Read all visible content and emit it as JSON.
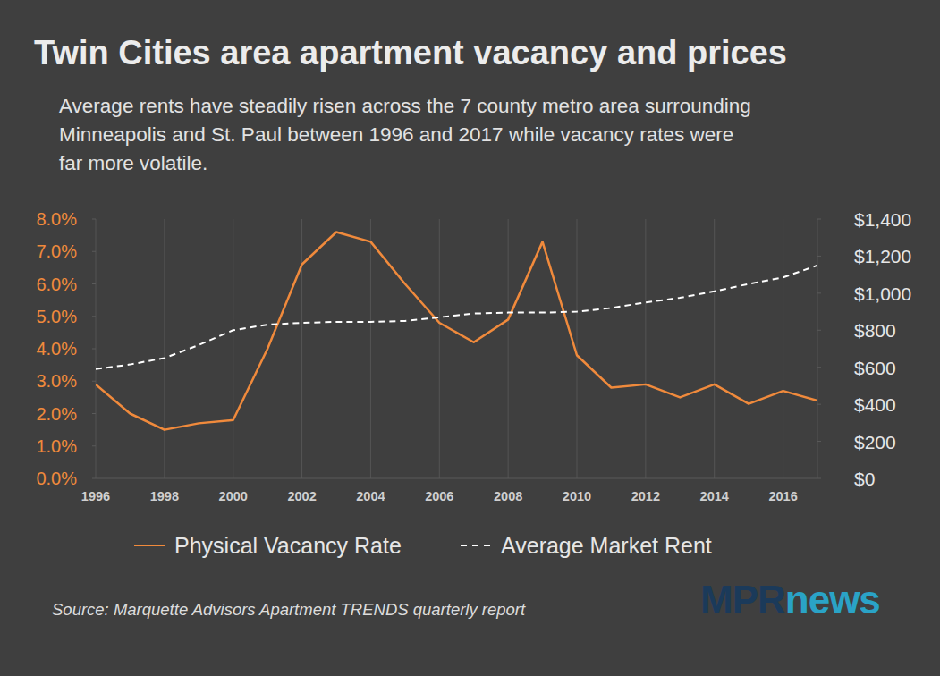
{
  "chart_data": {
    "type": "line",
    "title": "Twin Cities area apartment vacancy and prices",
    "subtitle": [
      "Average rents have steadily risen across the 7 county metro area surrounding",
      "Minneapolis and St. Paul between 1996 and 2017 while vacancy rates were",
      "far more volatile."
    ],
    "source": "Source: Marquette Advisors Apartment TRENDS quarterly report",
    "brand": [
      "MPR",
      "news"
    ],
    "x": [
      1996,
      1997,
      1998,
      1999,
      2000,
      2001,
      2002,
      2003,
      2004,
      2005,
      2006,
      2007,
      2008,
      2009,
      2010,
      2011,
      2012,
      2013,
      2014,
      2015,
      2016,
      2017
    ],
    "xlim": [
      1996,
      2017
    ],
    "xticks": [
      1996,
      1998,
      2000,
      2002,
      2004,
      2006,
      2008,
      2010,
      2012,
      2014,
      2016
    ],
    "ylim": [
      0,
      8
    ],
    "yticks": [
      {
        "value": 0,
        "label": "0.0%"
      },
      {
        "value": 1,
        "label": "1.0%"
      },
      {
        "value": 2,
        "label": "2.0%"
      },
      {
        "value": 3,
        "label": "3.0%"
      },
      {
        "value": 4,
        "label": "4.0%"
      },
      {
        "value": 5,
        "label": "5.0%"
      },
      {
        "value": 6,
        "label": "6.0%"
      },
      {
        "value": 7,
        "label": "7.0%"
      },
      {
        "value": 8,
        "label": "8.0%"
      }
    ],
    "y2lim": [
      0,
      1400
    ],
    "y2ticks": [
      {
        "value": 0,
        "label": "$0"
      },
      {
        "value": 200,
        "label": "$200"
      },
      {
        "value": 400,
        "label": "$400"
      },
      {
        "value": 600,
        "label": "$600"
      },
      {
        "value": 800,
        "label": "$800"
      },
      {
        "value": 1000,
        "label": "$1,000"
      },
      {
        "value": 1200,
        "label": "$1,200"
      },
      {
        "value": 1400,
        "label": "$1,400"
      }
    ],
    "grid": true,
    "legend": "bottom",
    "series": [
      {
        "name": "Physical Vacancy Rate",
        "color": "#f08a3c",
        "line_style": "solid",
        "values": [
          2.9,
          2.0,
          1.5,
          1.7,
          1.8,
          4.0,
          6.6,
          7.6,
          7.3,
          6.0,
          4.8,
          4.2,
          4.9,
          7.3,
          3.8,
          2.8,
          2.9,
          2.5,
          2.9,
          2.3,
          2.7,
          2.4
        ]
      },
      {
        "name": "Average Market Rent",
        "color": "#ffffff",
        "line_style": "dashed",
        "axis": "y2",
        "values": [
          590,
          615,
          650,
          720,
          800,
          830,
          840,
          845,
          845,
          850,
          870,
          890,
          895,
          895,
          900,
          920,
          950,
          975,
          1010,
          1050,
          1085,
          1150
        ]
      }
    ]
  }
}
